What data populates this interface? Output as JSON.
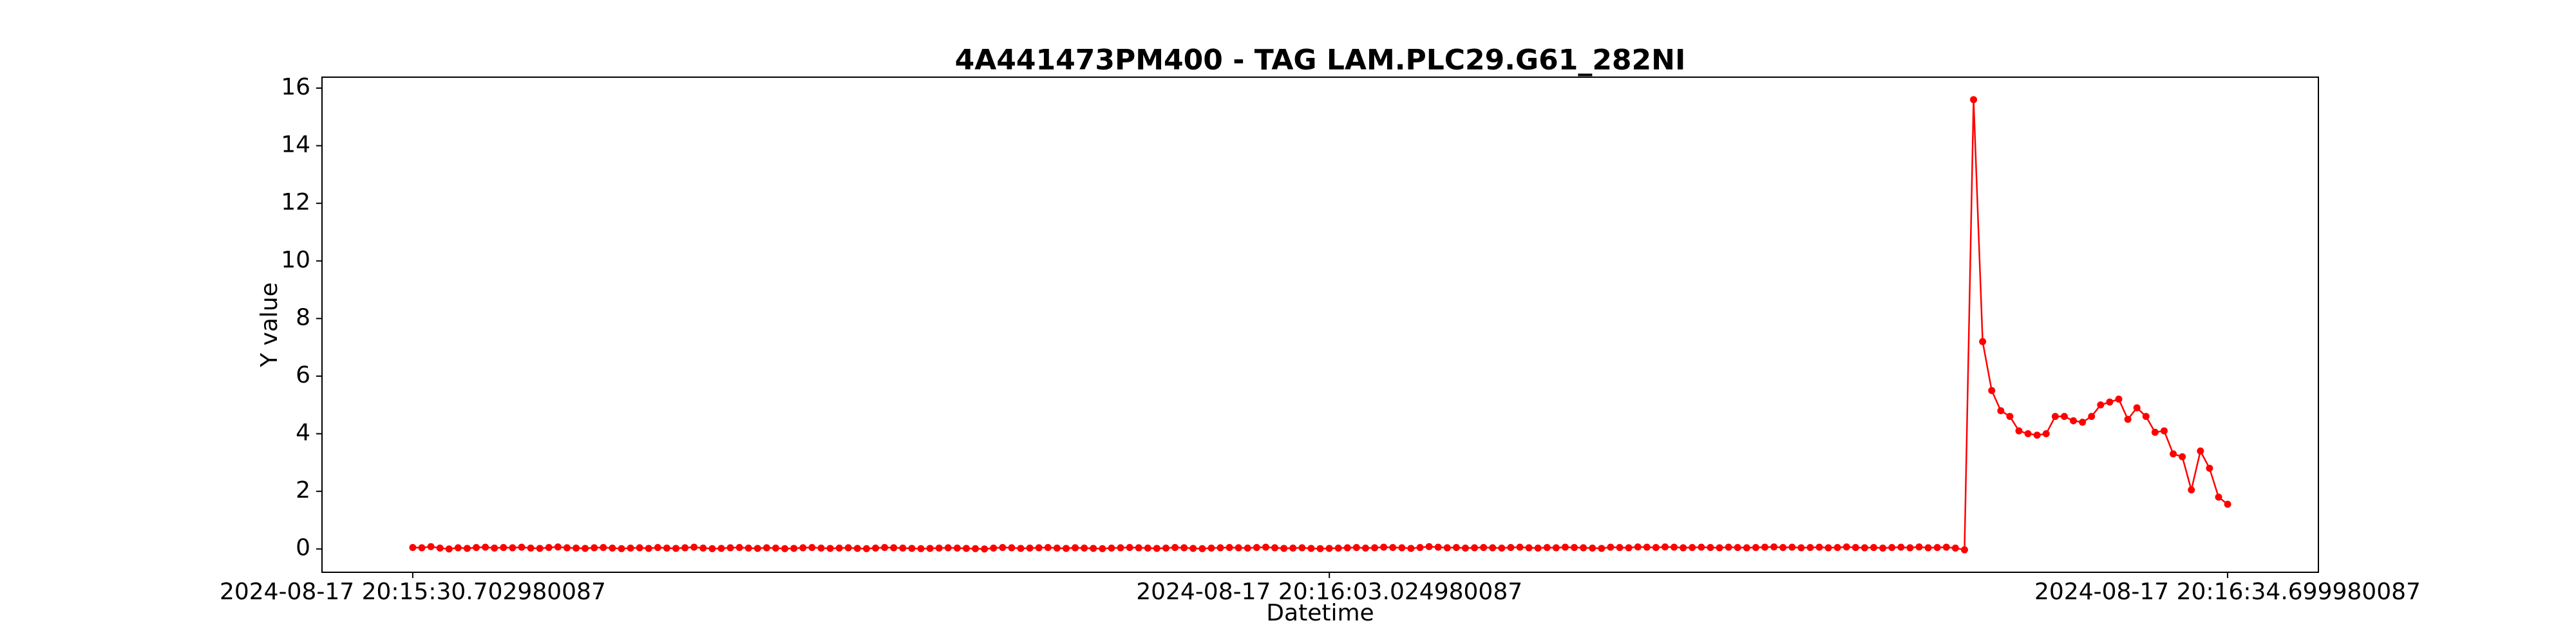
{
  "chart_data": {
    "type": "line",
    "title": "4A441473PM400 - TAG LAM.PLC29.G61_282NI",
    "x_label": "Datetime",
    "y_label": "Y value",
    "color": "red",
    "x": [
      0,
      0.32,
      0.64,
      0.96,
      1.28,
      1.6,
      1.92,
      2.24,
      2.56,
      2.88,
      3.2,
      3.52,
      3.84,
      4.16,
      4.48,
      4.8,
      5.12,
      5.44,
      5.76,
      6.08,
      6.4,
      6.72,
      7.04,
      7.36,
      7.68,
      8,
      8.32,
      8.64,
      8.96,
      9.28,
      9.6,
      9.92,
      10.24,
      10.56,
      10.88,
      11.2,
      11.52,
      11.84,
      12.16,
      12.48,
      12.8,
      13.12,
      13.44,
      13.76,
      14.08,
      14.4,
      14.72,
      15.04,
      15.36,
      15.68,
      16,
      16.32,
      16.64,
      16.96,
      17.28,
      17.6,
      17.92,
      18.24,
      18.56,
      18.88,
      19.2,
      19.52,
      19.84,
      20.16,
      20.48,
      20.8,
      21.12,
      21.44,
      21.76,
      22.08,
      22.4,
      22.72,
      23.04,
      23.36,
      23.68,
      24,
      24.32,
      24.64,
      24.96,
      25.28,
      25.6,
      25.92,
      26.24,
      26.56,
      26.88,
      27.2,
      27.52,
      27.84,
      28.16,
      28.48,
      28.8,
      29.12,
      29.44,
      29.76,
      30.08,
      30.4,
      30.72,
      31.04,
      31.36,
      31.68,
      32,
      32.32,
      32.64,
      32.96,
      33.28,
      33.6,
      33.92,
      34.24,
      34.56,
      34.88,
      35.2,
      35.52,
      35.84,
      36.16,
      36.48,
      36.8,
      37.12,
      37.44,
      37.76,
      38.08,
      38.4,
      38.72,
      39.04,
      39.36,
      39.68,
      40,
      40.32,
      40.64,
      40.96,
      41.28,
      41.6,
      41.92,
      42.24,
      42.56,
      42.88,
      43.2,
      43.52,
      43.84,
      44.16,
      44.48,
      44.8,
      45.12,
      45.44,
      45.76,
      46.08,
      46.4,
      46.72,
      47.04,
      47.36,
      47.68,
      48,
      48.32,
      48.64,
      48.96,
      49.28,
      49.6,
      49.92,
      50.24,
      50.56,
      50.88,
      51.2,
      51.52,
      51.84,
      52.16,
      52.48,
      52.8,
      53.12,
      53.44,
      53.76,
      54.08,
      54.4,
      54.72,
      55.04,
      55.36,
      55.68,
      56,
      56.32,
      56.64,
      56.96,
      57.28,
      57.6,
      57.92,
      58.24,
      58.56,
      58.88,
      59.2,
      59.52,
      59.84,
      60.16,
      60.48,
      60.8,
      61.12,
      61.44,
      61.76,
      62.08,
      62.4,
      62.72,
      63.04,
      63.36,
      63.68,
      64
    ],
    "values": [
      0.05,
      0.04,
      0.08,
      0.03,
      0.0,
      0.04,
      0.02,
      0.05,
      0.06,
      0.03,
      0.05,
      0.04,
      0.06,
      0.03,
      0.02,
      0.05,
      0.07,
      0.04,
      0.03,
      0.02,
      0.04,
      0.05,
      0.03,
      0.01,
      0.03,
      0.04,
      0.02,
      0.05,
      0.03,
      0.02,
      0.04,
      0.06,
      0.03,
      0.01,
      0.02,
      0.04,
      0.05,
      0.03,
      0.02,
      0.04,
      0.03,
      0.01,
      0.02,
      0.04,
      0.05,
      0.03,
      0.02,
      0.03,
      0.04,
      0.02,
      0.01,
      0.03,
      0.05,
      0.04,
      0.03,
      0.02,
      0.01,
      0.02,
      0.03,
      0.04,
      0.03,
      0.02,
      0.01,
      0.0,
      0.03,
      0.05,
      0.04,
      0.02,
      0.03,
      0.04,
      0.05,
      0.03,
      0.02,
      0.04,
      0.03,
      0.02,
      0.01,
      0.03,
      0.04,
      0.05,
      0.04,
      0.03,
      0.02,
      0.03,
      0.05,
      0.04,
      0.02,
      0.01,
      0.03,
      0.04,
      0.05,
      0.04,
      0.03,
      0.05,
      0.06,
      0.04,
      0.02,
      0.03,
      0.04,
      0.02,
      0.01,
      0.02,
      0.03,
      0.04,
      0.05,
      0.03,
      0.04,
      0.06,
      0.05,
      0.04,
      0.02,
      0.05,
      0.08,
      0.06,
      0.04,
      0.05,
      0.03,
      0.04,
      0.05,
      0.04,
      0.03,
      0.05,
      0.06,
      0.04,
      0.03,
      0.05,
      0.04,
      0.06,
      0.05,
      0.04,
      0.03,
      0.02,
      0.06,
      0.05,
      0.04,
      0.07,
      0.06,
      0.05,
      0.07,
      0.06,
      0.04,
      0.05,
      0.06,
      0.05,
      0.04,
      0.06,
      0.05,
      0.04,
      0.05,
      0.06,
      0.07,
      0.05,
      0.06,
      0.04,
      0.05,
      0.06,
      0.04,
      0.05,
      0.07,
      0.05,
      0.04,
      0.05,
      0.03,
      0.05,
      0.06,
      0.04,
      0.07,
      0.04,
      0.05,
      0.06,
      0.03,
      -0.03,
      15.6,
      7.2,
      5.5,
      4.8,
      4.6,
      4.1,
      4.0,
      3.95,
      4.0,
      4.6,
      4.6,
      4.45,
      4.4,
      4.6,
      5.0,
      5.1,
      5.2,
      4.5,
      4.9,
      4.6,
      4.05,
      4.1,
      3.3,
      3.2,
      2.05,
      3.4,
      2.8,
      1.8,
      1.55
    ],
    "xlim": [
      -3.2,
      67.2
    ],
    "xticks": [
      {
        "value": 0,
        "label": "2024-08-17 20:15:30.702980087"
      },
      {
        "value": 32.322,
        "label": "2024-08-17 20:16:03.024980087"
      },
      {
        "value": 63.997,
        "label": "2024-08-17 20:16:34.699980087"
      }
    ],
    "ylim": [
      -0.81,
      16.38
    ],
    "yticks": [
      0,
      2,
      4,
      6,
      8,
      10,
      12,
      14,
      16
    ],
    "grid": false,
    "markers": true
  }
}
